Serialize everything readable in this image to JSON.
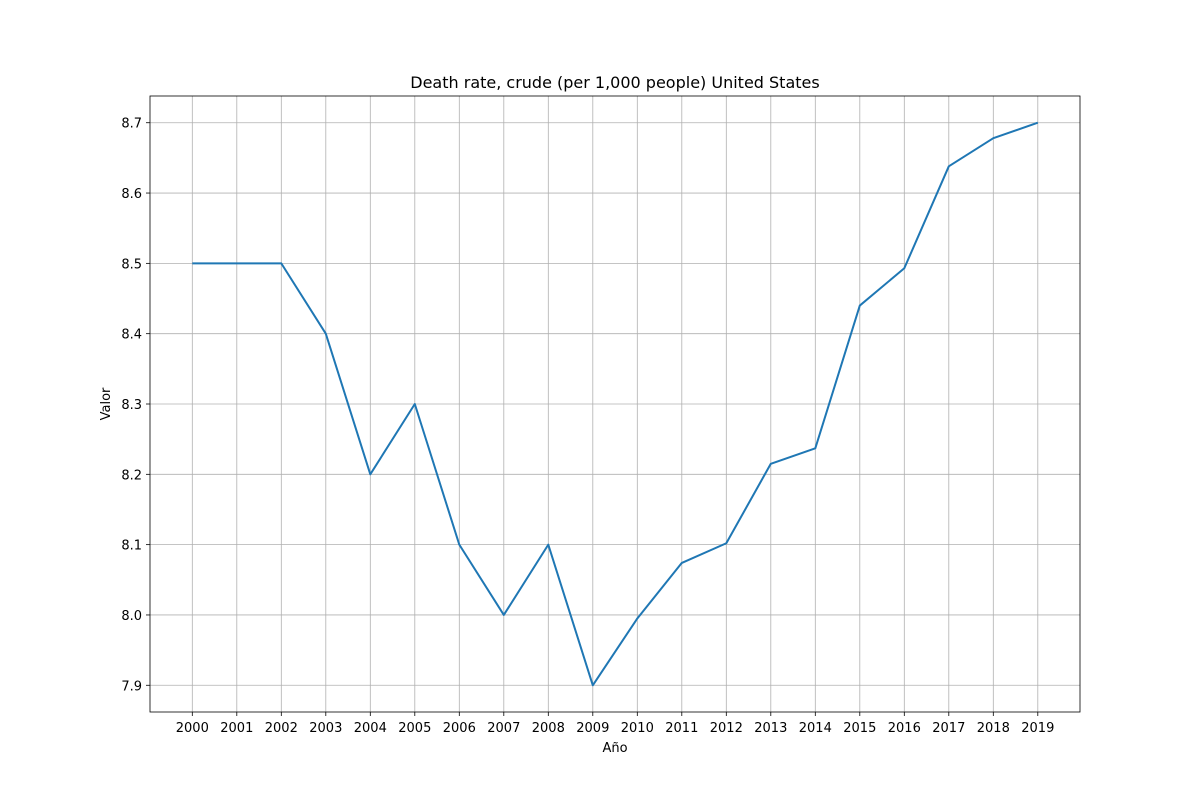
{
  "chart_data": {
    "type": "line",
    "title": "Death rate, crude (per 1,000 people) United States",
    "xlabel": "Año",
    "ylabel": "Valor",
    "x": [
      "2000",
      "2001",
      "2002",
      "2003",
      "2004",
      "2005",
      "2006",
      "2007",
      "2008",
      "2009",
      "2010",
      "2011",
      "2012",
      "2013",
      "2014",
      "2015",
      "2016",
      "2017",
      "2018",
      "2019"
    ],
    "series": [
      {
        "color": "#1f77b4",
        "values": [
          8.5,
          8.5,
          8.5,
          8.4,
          8.2,
          8.3,
          8.1,
          8.0,
          8.1,
          7.9,
          7.995,
          8.074,
          8.102,
          8.215,
          8.237,
          8.44,
          8.493,
          8.638,
          8.678,
          8.7
        ]
      }
    ],
    "yticks": [
      "7.9",
      "8.0",
      "8.1",
      "8.2",
      "8.3",
      "8.4",
      "8.5",
      "8.6",
      "8.7"
    ],
    "ylim": [
      7.862,
      8.738
    ],
    "grid": true
  }
}
